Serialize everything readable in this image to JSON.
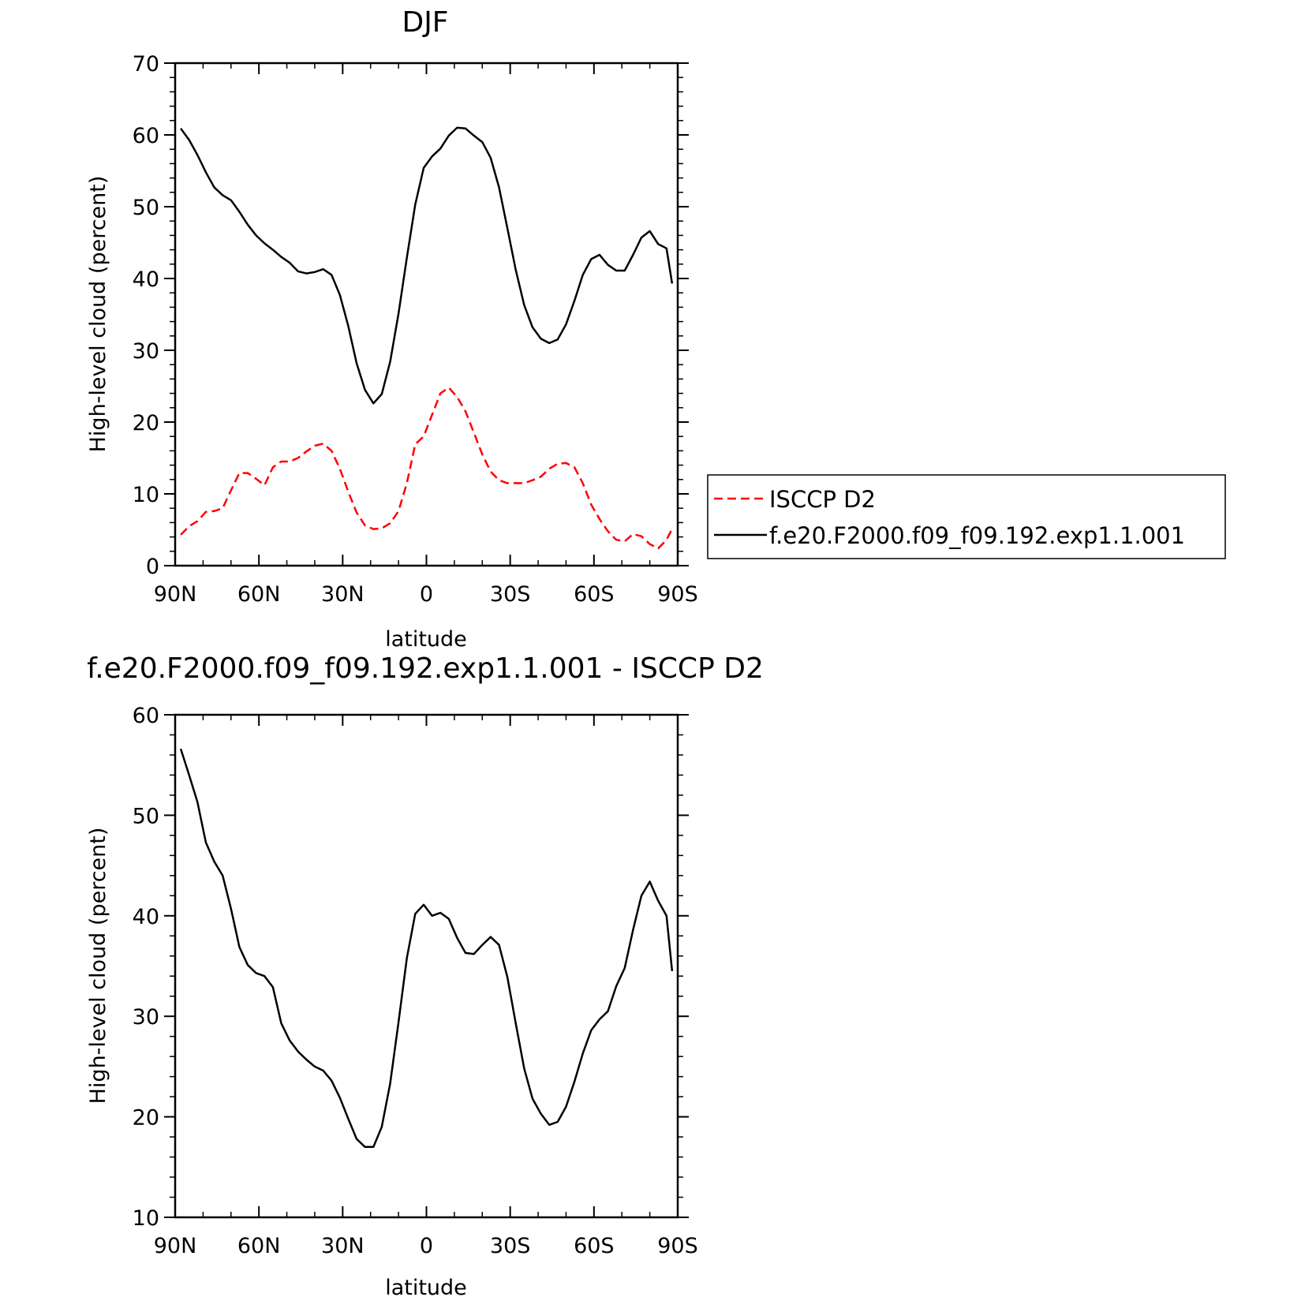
{
  "chart_data": [
    {
      "type": "line",
      "title": "DJF",
      "xlabel": "latitude",
      "ylabel": "High-level cloud (percent)",
      "xlim": [
        90,
        -90
      ],
      "ylim": [
        0,
        70
      ],
      "x_ticks": [
        90,
        60,
        30,
        0,
        -30,
        -60,
        -90
      ],
      "x_tick_labels": [
        "90N",
        "60N",
        "30N",
        "0",
        "30S",
        "60S",
        "90S"
      ],
      "y_ticks": [
        0,
        10,
        20,
        30,
        40,
        50,
        60,
        70
      ],
      "y_tick_labels": [
        "0",
        "10",
        "20",
        "30",
        "40",
        "50",
        "60",
        "70"
      ],
      "legend": "right",
      "x": [
        88,
        85,
        82,
        79,
        76,
        73,
        70,
        67,
        64,
        61,
        58,
        55,
        52,
        49,
        46,
        43,
        40,
        37,
        34,
        31,
        28,
        25,
        22,
        19,
        16,
        13,
        10,
        7,
        4,
        1,
        -2,
        -5,
        -8,
        -11,
        -14,
        -17,
        -20,
        -23,
        -26,
        -29,
        -32,
        -35,
        -38,
        -41,
        -44,
        -47,
        -50,
        -53,
        -56,
        -59,
        -62,
        -65,
        -68,
        -71,
        -74,
        -77,
        -80,
        -83,
        -86,
        -88
      ],
      "series": [
        {
          "name": "ISCCP D2",
          "color": "#ff0000",
          "dash": true,
          "values": [
            4.3,
            5.5,
            6.2,
            7.5,
            7.6,
            8.0,
            10.5,
            12.9,
            12.9,
            12.1,
            11.2,
            13.7,
            14.5,
            14.5,
            15.0,
            15.9,
            16.7,
            17.0,
            16.0,
            13.5,
            10.3,
            7.4,
            5.6,
            5.1,
            5.2,
            5.9,
            7.6,
            11.5,
            16.9,
            18.0,
            21.0,
            24.0,
            24.8,
            23.5,
            21.5,
            18.5,
            15.5,
            13.1,
            11.9,
            11.5,
            11.5,
            11.5,
            11.9,
            12.4,
            13.5,
            14.2,
            14.3,
            13.7,
            11.5,
            8.5,
            6.5,
            4.8,
            3.6,
            3.4,
            4.4,
            4.1,
            3.0,
            2.4,
            3.6,
            5.1
          ]
        },
        {
          "name": "f.e20.F2000.f09_f09.192.exp1.1.001",
          "color": "#000000",
          "dash": false,
          "values": [
            60.9,
            59.3,
            57.2,
            54.8,
            52.7,
            51.6,
            50.9,
            49.3,
            47.5,
            46.0,
            44.9,
            44.0,
            43.0,
            42.2,
            41.0,
            40.7,
            40.9,
            41.3,
            40.5,
            37.7,
            33.4,
            28.2,
            24.5,
            22.6,
            23.9,
            28.4,
            35.1,
            42.9,
            50.3,
            55.4,
            57.0,
            58.1,
            59.9,
            61.0,
            60.9,
            59.9,
            59.0,
            56.8,
            52.7,
            47.0,
            41.2,
            36.3,
            33.2,
            31.6,
            31.0,
            31.5,
            33.6,
            36.9,
            40.5,
            42.7,
            43.3,
            41.9,
            41.1,
            41.1,
            43.3,
            45.7,
            46.6,
            44.8,
            44.2,
            39.3
          ]
        }
      ]
    },
    {
      "type": "line",
      "title": "f.e20.F2000.f09_f09.192.exp1.1.001 - ISCCP D2",
      "xlabel": "latitude",
      "ylabel": "High-level cloud (percent)",
      "xlim": [
        90,
        -90
      ],
      "ylim": [
        10,
        60
      ],
      "x_ticks": [
        90,
        60,
        30,
        0,
        -30,
        -60,
        -90
      ],
      "x_tick_labels": [
        "90N",
        "60N",
        "30N",
        "0",
        "30S",
        "60S",
        "90S"
      ],
      "y_ticks": [
        10,
        20,
        30,
        40,
        50,
        60
      ],
      "y_tick_labels": [
        "10",
        "20",
        "30",
        "40",
        "50",
        "60"
      ],
      "x": [
        88,
        85,
        82,
        79,
        76,
        73,
        70,
        67,
        64,
        61,
        58,
        55,
        52,
        49,
        46,
        43,
        40,
        37,
        34,
        31,
        28,
        25,
        22,
        19,
        16,
        13,
        10,
        7,
        4,
        1,
        -2,
        -5,
        -8,
        -11,
        -14,
        -17,
        -20,
        -23,
        -26,
        -29,
        -32,
        -35,
        -38,
        -41,
        -44,
        -47,
        -50,
        -53,
        -56,
        -59,
        -62,
        -65,
        -68,
        -71,
        -74,
        -77,
        -80,
        -83,
        -86,
        -88
      ],
      "series": [
        {
          "color": "#000000",
          "values": [
            56.6,
            54.0,
            51.3,
            47.3,
            45.4,
            44.0,
            40.7,
            36.9,
            35.1,
            34.3,
            34.0,
            32.9,
            29.3,
            27.6,
            26.5,
            25.7,
            25.0,
            24.6,
            23.6,
            21.9,
            19.8,
            17.8,
            17.0,
            17.0,
            19.0,
            23.3,
            29.4,
            35.8,
            40.2,
            41.1,
            40.0,
            40.3,
            39.7,
            37.8,
            36.3,
            36.2,
            37.1,
            37.9,
            37.1,
            33.9,
            29.3,
            24.8,
            21.8,
            20.3,
            19.2,
            19.5,
            21.0,
            23.5,
            26.3,
            28.6,
            29.7,
            30.5,
            33.0,
            34.8,
            38.6,
            42.0,
            43.4,
            41.5,
            40.0,
            34.5
          ]
        }
      ]
    }
  ]
}
